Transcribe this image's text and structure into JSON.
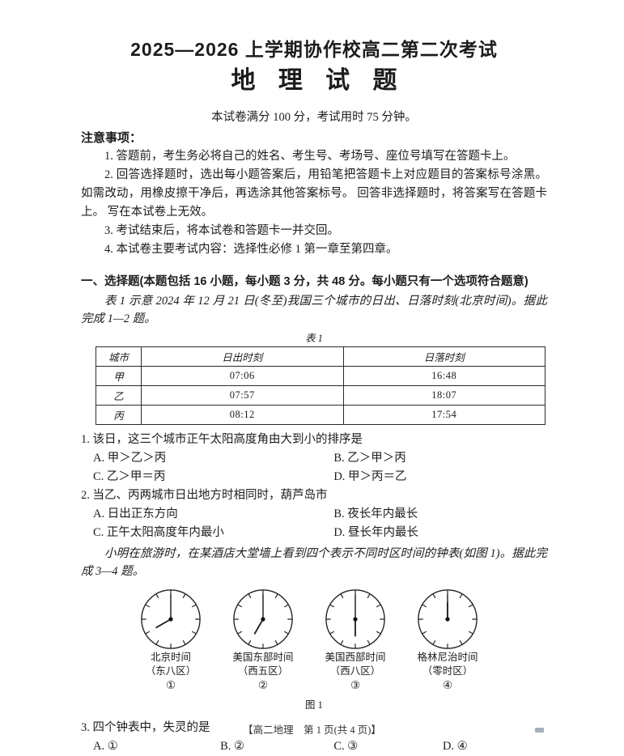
{
  "header": {
    "title_line1": "2025—2026 上学期协作校高二第二次考试",
    "title_line2": "地 理 试 题",
    "exam_meta": "本试卷满分 100 分，考试用时 75 分钟。"
  },
  "notice": {
    "title": "注意事项：",
    "items": [
      "1. 答题前，考生务必将自己的姓名、考生号、考场号、座位号填写在答题卡上。",
      "2. 回答选择题时，选出每小题答案后，用铅笔把答题卡上对应题目的答案标号涂黑。 如需改动，用橡皮擦干净后，再选涂其他答案标号。 回答非选择题时，将答案写在答题卡上。 写在本试卷上无效。",
      "3. 考试结束后，将本试卷和答题卡一并交回。",
      "4. 本试卷主要考试内容：选择性必修 1 第一章至第四章。"
    ]
  },
  "section_one": {
    "heading": "一、选择题(本题包括 16 小题，每小题 3 分，共 48 分。每小题只有一个选项符合题意)",
    "intro": "表 1 示意 2024 年 12 月 21 日(冬至)我国三个城市的日出、日落时刻(北京时间)。据此完成 1—2 题。"
  },
  "table1": {
    "caption": "表 1",
    "headers": [
      "城市",
      "日出时刻",
      "日落时刻"
    ],
    "rows": [
      [
        "甲",
        "07:06",
        "16:48"
      ],
      [
        "乙",
        "07:57",
        "18:07"
      ],
      [
        "丙",
        "08:12",
        "17:54"
      ]
    ]
  },
  "q1": {
    "stem": "1. 该日，这三个城市正午太阳高度角由大到小的排序是",
    "options": [
      "A. 甲＞乙＞丙",
      "B. 乙＞甲＞丙",
      "C. 乙＞甲＝丙",
      "D. 甲＞丙＝乙"
    ]
  },
  "q2": {
    "stem": "2. 当乙、丙两城市日出地方时相同时，葫芦岛市",
    "options": [
      "A. 日出正东方向",
      "B. 夜长年内最长",
      "C. 正午太阳高度年内最小",
      "D. 昼长年内最长"
    ]
  },
  "fig1_intro": "小明在旅游时，在某酒店大堂墙上看到四个表示不同时区时间的钟表(如图 1)。据此完成 3—4 题。",
  "figure1": {
    "caption": "图 1",
    "clocks": [
      {
        "name": "北京时间",
        "zone": "（东八区）",
        "num": "①",
        "hour_angle_deg": 240,
        "minute_angle_deg": 0
      },
      {
        "name": "美国东部时间",
        "zone": "（西五区）",
        "num": "②",
        "hour_angle_deg": 210,
        "minute_angle_deg": 0
      },
      {
        "name": "美国西部时间",
        "zone": "（西八区）",
        "num": "③",
        "hour_angle_deg": 180,
        "minute_angle_deg": 0
      },
      {
        "name": "格林尼治时间",
        "zone": "（零时区）",
        "num": "④",
        "hour_angle_deg": 0,
        "minute_angle_deg": 0
      }
    ]
  },
  "q3": {
    "stem": "3. 四个钟表中，失灵的是",
    "options": [
      "A. ①",
      "B. ②",
      "C. ③",
      "D. ④"
    ]
  },
  "footer": "【高二地理　第 1 页(共 4 页)】"
}
